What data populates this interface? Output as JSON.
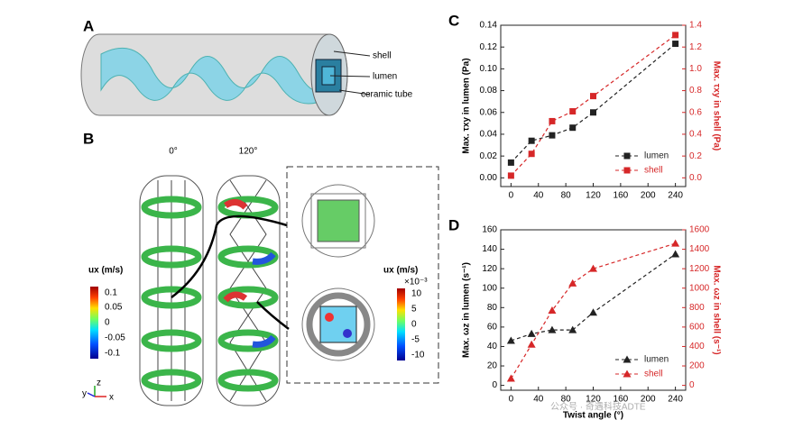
{
  "panels": {
    "a": {
      "label": "A",
      "callouts": [
        "shell",
        "lumen",
        "ceramic tube"
      ]
    },
    "b": {
      "label": "B",
      "angles": [
        "0°",
        "120°"
      ],
      "bar1": {
        "title": "ux (m/s)",
        "ticks": [
          "0.1",
          "0.05",
          "0",
          "-0.05",
          "-0.1"
        ]
      },
      "bar2": {
        "title": "ux (m/s)",
        "scale": "×10⁻³",
        "ticks": [
          "10",
          "5",
          "0",
          "-5",
          "-10"
        ]
      },
      "axes": [
        "y",
        "z",
        "x"
      ]
    }
  },
  "watermark": "公众号 · 奇遇科技ADTE",
  "chart_data": [
    {
      "type": "line",
      "title": "C",
      "x": [
        0,
        30,
        60,
        90,
        120,
        240
      ],
      "xlim": [
        -15,
        255
      ],
      "xticks": [
        0,
        40,
        80,
        120,
        160,
        200,
        240
      ],
      "ylabel": "Max. τxy in lumen (Pa)",
      "y2label": "Max. τxy in shell (Pa)",
      "ylim": [
        -0.008,
        0.14
      ],
      "yticks": [
        {
          "value": 0,
          "label": "0.00"
        },
        {
          "value": 0.02,
          "label": "0.02"
        },
        {
          "value": 0.04,
          "label": "0.04"
        },
        {
          "value": 0.06,
          "label": "0.06"
        },
        {
          "value": 0.08,
          "label": "0.08"
        },
        {
          "value": 0.1,
          "label": "0.10"
        },
        {
          "value": 0.12,
          "label": "0.12"
        },
        {
          "value": 0.14,
          "label": "0.14"
        }
      ],
      "y2lim": [
        -0.08,
        1.4
      ],
      "y2ticks": [
        {
          "value": 0,
          "label": "0.0"
        },
        0.2,
        0.4,
        0.6,
        0.8,
        {
          "value": 1,
          "label": "1.0"
        },
        1.2,
        1.4
      ],
      "legend": "lower right",
      "marker": "square",
      "series": [
        {
          "name": "lumen",
          "color": "#222222",
          "values": [
            0.014,
            0.034,
            0.039,
            0.046,
            0.06,
            0.123
          ]
        },
        {
          "name": "shell",
          "color": "#d62728",
          "axis": "y2",
          "values": [
            0.02,
            0.22,
            0.52,
            0.61,
            0.75,
            1.31
          ]
        }
      ]
    },
    {
      "type": "line",
      "title": "D",
      "x": [
        0,
        30,
        60,
        90,
        120,
        240
      ],
      "xlim": [
        -15,
        255
      ],
      "xticks": [
        0,
        40,
        80,
        120,
        160,
        200,
        240
      ],
      "xlabel": "Twist angle (°)",
      "ylabel": "Max. ωz in lumen (s⁻¹)",
      "y2label": "Max. ωz in shell (s⁻¹)",
      "ylim": [
        -5,
        160
      ],
      "yticks": [
        0,
        20,
        40,
        60,
        80,
        100,
        120,
        140,
        160
      ],
      "y2lim": [
        -50,
        1600
      ],
      "y2ticks": [
        0,
        200,
        400,
        600,
        800,
        1000,
        1200,
        1400,
        1600
      ],
      "legend": "lower right",
      "marker": "triangle",
      "series": [
        {
          "name": "lumen",
          "color": "#222222",
          "values": [
            46,
            53,
            57,
            57,
            75,
            135
          ]
        },
        {
          "name": "shell",
          "color": "#d62728",
          "axis": "y2",
          "values": [
            70,
            420,
            770,
            1050,
            1200,
            1460
          ]
        }
      ]
    }
  ]
}
